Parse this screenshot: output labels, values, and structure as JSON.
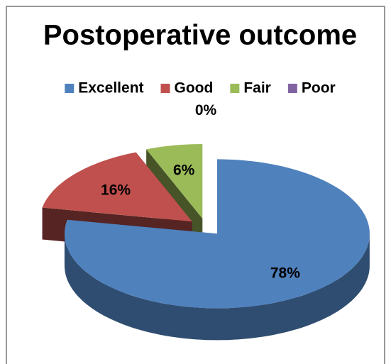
{
  "chart_data": {
    "type": "pie",
    "title": "Postoperative outcome",
    "categories": [
      "Excellent",
      "Good",
      "Fair",
      "Poor"
    ],
    "values": [
      78,
      16,
      6,
      0
    ],
    "value_labels": [
      "78%",
      "16%",
      "6%",
      "0%"
    ],
    "colors": [
      "#4f81bd",
      "#c0504d",
      "#9bbb59",
      "#8064a2"
    ],
    "legend": "top"
  }
}
